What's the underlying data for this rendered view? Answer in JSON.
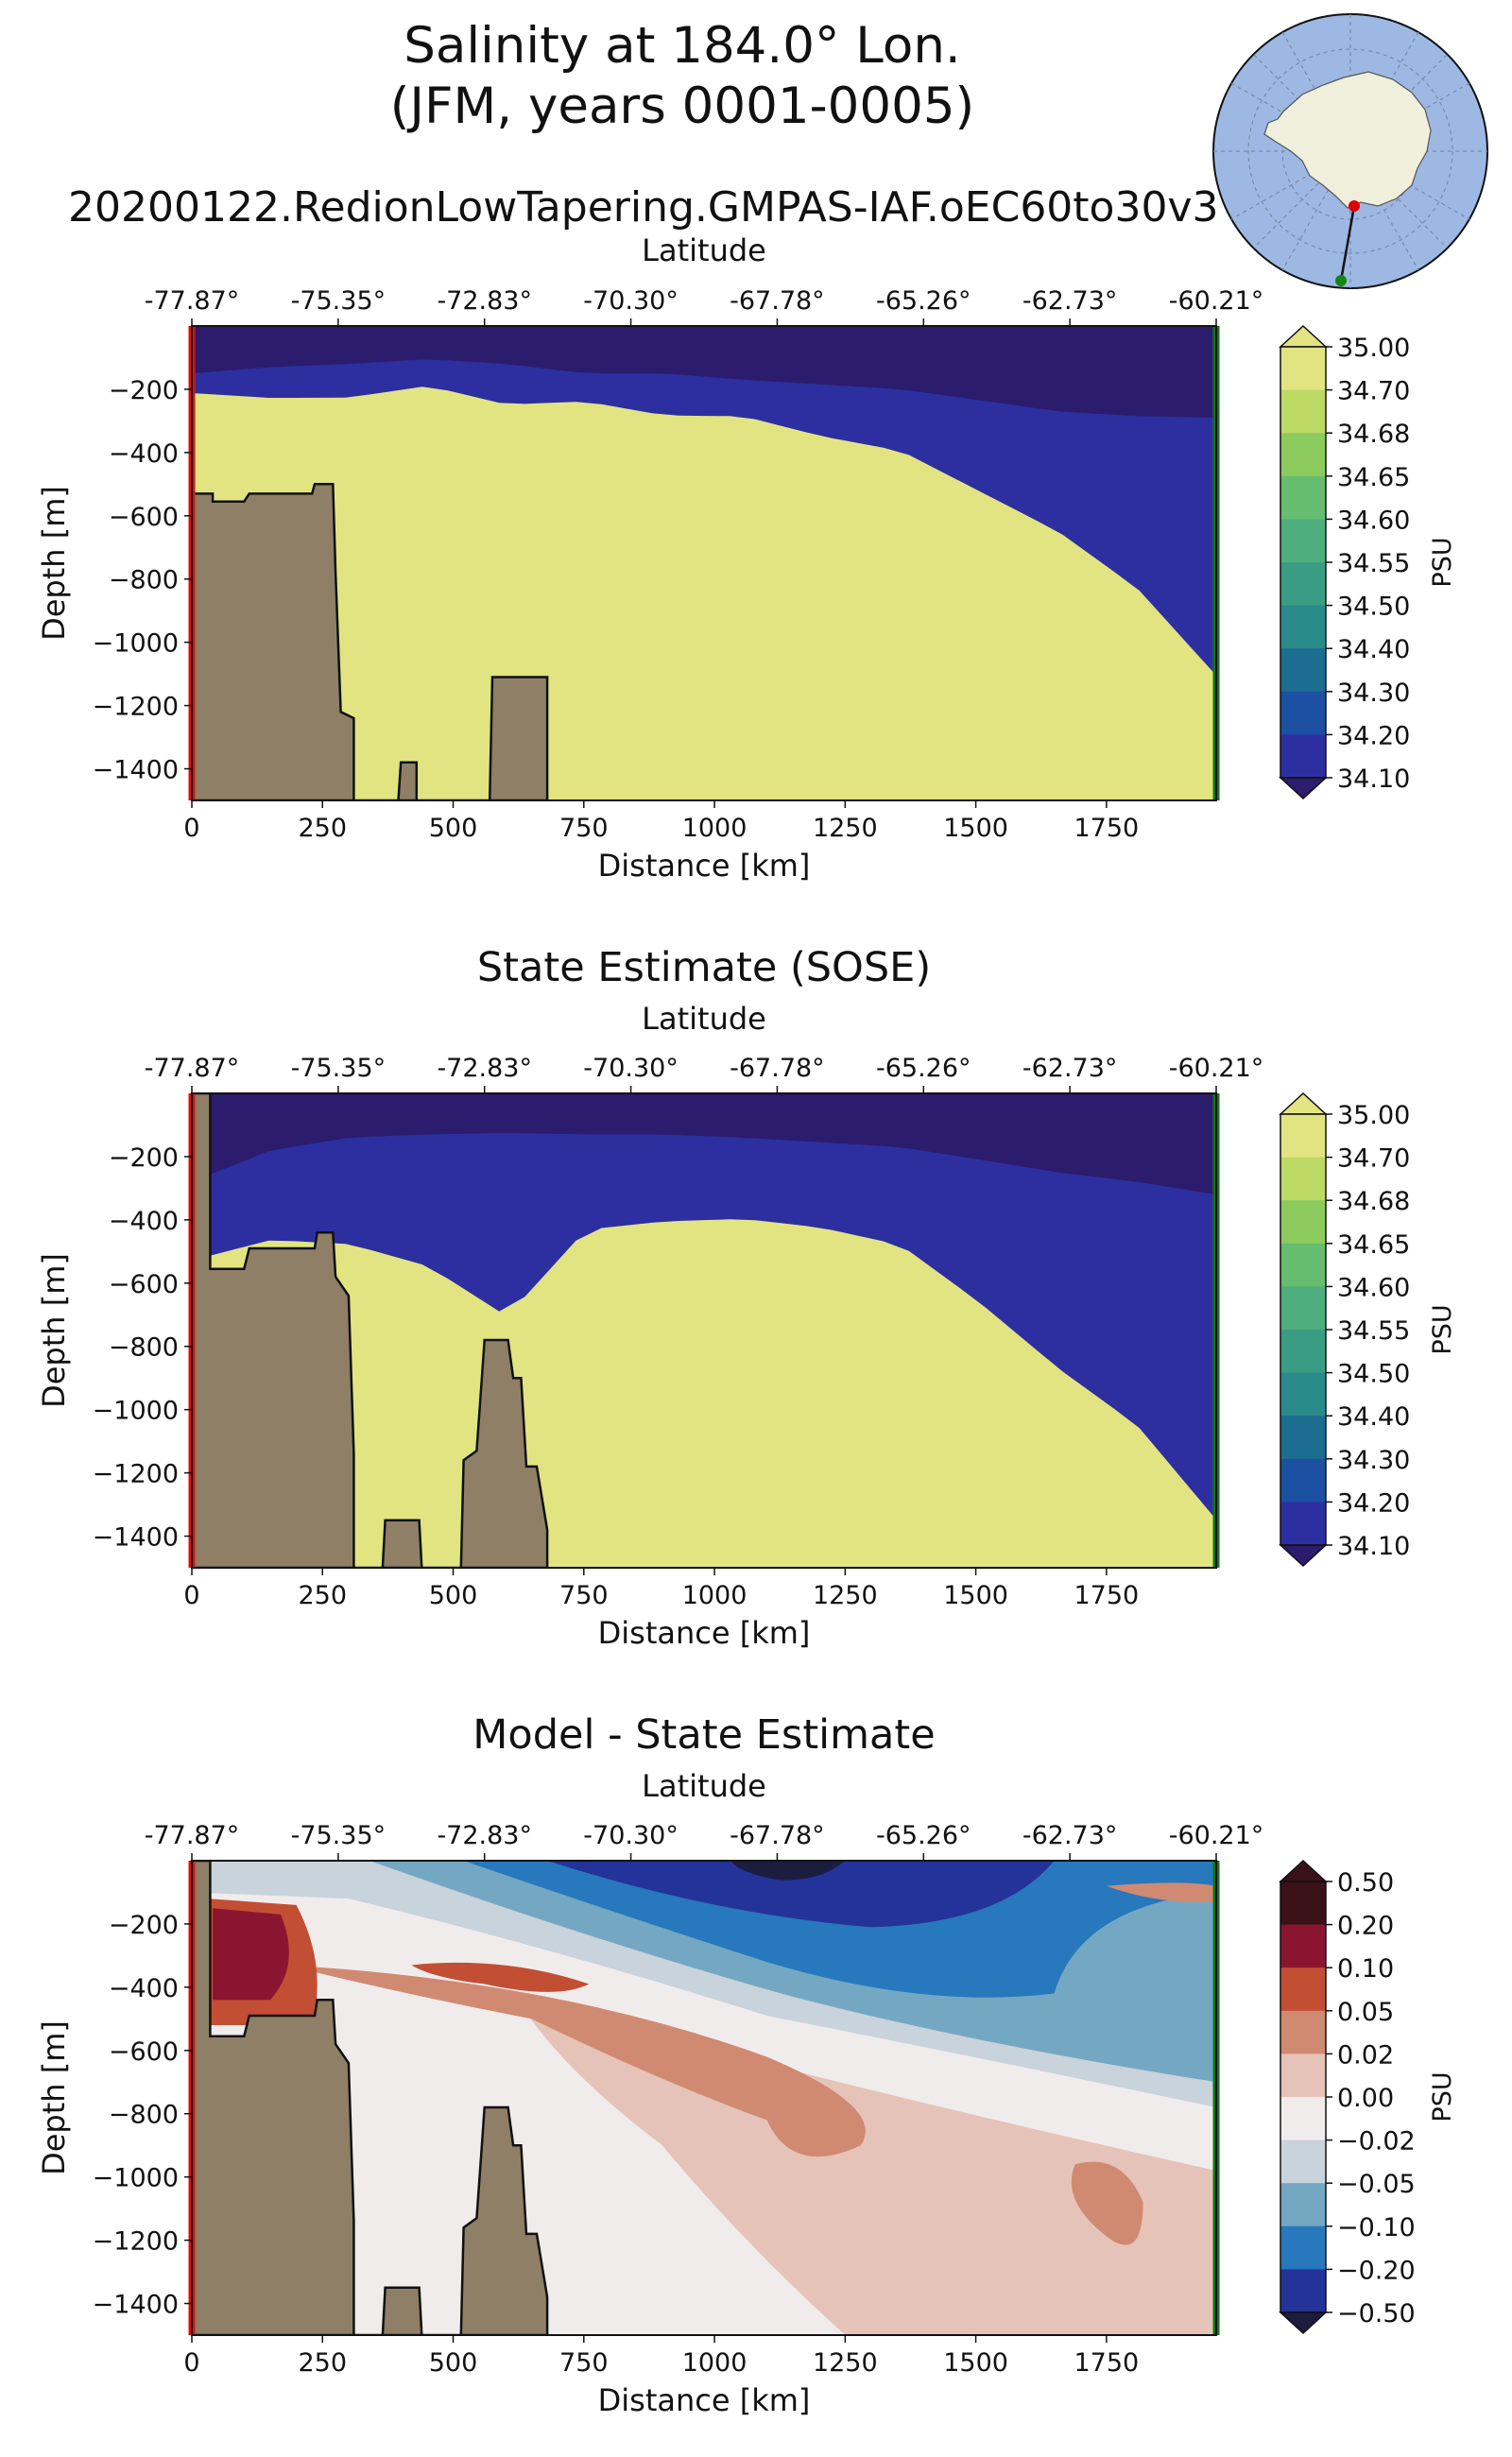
{
  "figure": {
    "title_line1": "Salinity at 184.0° Lon.",
    "title_line2": "(JFM, years 0001-0005)",
    "run_name": "20200122.RedionLowTapering.GMPAS-IAF.oEC60to30v3"
  },
  "inset_map": {
    "ocean_color": "#9db8e3",
    "land_color": "#efefdc",
    "transect_start_color": "#dd0000",
    "transect_end_color": "#118811"
  },
  "colors": {
    "land": "#8e7f66",
    "start_line": "#dd1111",
    "end_line": "#117711",
    "salinity_levels": [
      "#2b1c6e",
      "#2d2fa0",
      "#1b50a3",
      "#1c6d90",
      "#2a8b8a",
      "#3a9d83",
      "#4fae7d",
      "#67bd6f",
      "#8ccb5e",
      "#bcd964",
      "#e2e482"
    ],
    "diff_levels": [
      "#1c1d3e",
      "#23339a",
      "#2778bd",
      "#74a8c2",
      "#c8d3db",
      "#f1ecec",
      "#e6c3b8",
      "#d08a72",
      "#c24f34",
      "#8b1530",
      "#3a1119"
    ]
  },
  "chart_data": [
    {
      "type": "heatmap",
      "title": "",
      "top_axis_label": "Latitude",
      "top_ticks": [
        "-77.87°",
        "-75.35°",
        "-72.83°",
        "-70.30°",
        "-67.78°",
        "-65.26°",
        "-62.73°",
        "-60.21°"
      ],
      "xlabel": "Distance [km]",
      "ylabel": "Depth [m]",
      "xlim": [
        0,
        1960
      ],
      "ylim": [
        -1500,
        0
      ],
      "x_ticks": [
        "0",
        "250",
        "500",
        "750",
        "1000",
        "1250",
        "1500",
        "1750"
      ],
      "y_ticks": [
        "-200",
        "-400",
        "-600",
        "-800",
        "-1000",
        "-1200",
        "-1400"
      ],
      "colorbar_label": "PSU",
      "colorbar_ticks": [
        "35.00",
        "34.70",
        "34.68",
        "34.65",
        "34.60",
        "34.55",
        "34.50",
        "34.40",
        "34.30",
        "34.20",
        "34.10"
      ],
      "surface_layer_depth_m": [
        150,
        130,
        120,
        105,
        120,
        150,
        150,
        170,
        185,
        200,
        235,
        270,
        285,
        290
      ],
      "halocline_depth_m": [
        220,
        240,
        240,
        200,
        265,
        250,
        300,
        300,
        370,
        420,
        560,
        700,
        900,
        1210
      ],
      "bathymetry": [
        [
          0,
          -1500
        ],
        [
          0,
          -530
        ],
        [
          40,
          -530
        ],
        [
          40,
          -555
        ],
        [
          100,
          -555
        ],
        [
          110,
          -530
        ],
        [
          230,
          -530
        ],
        [
          235,
          -500
        ],
        [
          270,
          -500
        ],
        [
          275,
          -780
        ],
        [
          285,
          -1220
        ],
        [
          310,
          -1240
        ],
        [
          310,
          -1500
        ],
        [
          395,
          -1500
        ],
        [
          400,
          -1380
        ],
        [
          430,
          -1380
        ],
        [
          430,
          -1500
        ],
        [
          570,
          -1500
        ],
        [
          575,
          -1110
        ],
        [
          680,
          -1110
        ],
        [
          680,
          -1500
        ]
      ]
    },
    {
      "type": "heatmap",
      "title": "State Estimate (SOSE)",
      "top_axis_label": "Latitude",
      "top_ticks": [
        "-77.87°",
        "-75.35°",
        "-72.83°",
        "-70.30°",
        "-67.78°",
        "-65.26°",
        "-62.73°",
        "-60.21°"
      ],
      "xlabel": "Distance [km]",
      "ylabel": "Depth [m]",
      "xlim": [
        0,
        1960
      ],
      "ylim": [
        -1500,
        0
      ],
      "x_ticks": [
        "0",
        "250",
        "500",
        "750",
        "1000",
        "1250",
        "1500",
        "1750"
      ],
      "y_ticks": [
        "-200",
        "-400",
        "-600",
        "-800",
        "-1000",
        "-1200",
        "-1400"
      ],
      "colorbar_label": "PSU",
      "colorbar_ticks": [
        "35.00",
        "34.70",
        "34.68",
        "34.65",
        "34.60",
        "34.55",
        "34.50",
        "34.40",
        "34.30",
        "34.20",
        "34.10"
      ],
      "surface_layer_depth_m": [
        280,
        180,
        140,
        130,
        125,
        130,
        130,
        140,
        155,
        170,
        210,
        250,
        280,
        320
      ],
      "halocline_depth_m": [
        560,
        500,
        520,
        600,
        780,
        470,
        440,
        430,
        460,
        520,
        720,
        950,
        1150,
        1480
      ],
      "bathymetry": [
        [
          0,
          -1500
        ],
        [
          0,
          0
        ],
        [
          35,
          0
        ],
        [
          35,
          -555
        ],
        [
          100,
          -555
        ],
        [
          110,
          -490
        ],
        [
          235,
          -490
        ],
        [
          240,
          -440
        ],
        [
          270,
          -440
        ],
        [
          275,
          -580
        ],
        [
          300,
          -640
        ],
        [
          310,
          -1140
        ],
        [
          310,
          -1500
        ],
        [
          365,
          -1500
        ],
        [
          370,
          -1350
        ],
        [
          435,
          -1350
        ],
        [
          440,
          -1500
        ],
        [
          515,
          -1500
        ],
        [
          520,
          -1160
        ],
        [
          545,
          -1130
        ],
        [
          555,
          -900
        ],
        [
          560,
          -780
        ],
        [
          605,
          -780
        ],
        [
          615,
          -900
        ],
        [
          630,
          -900
        ],
        [
          640,
          -1180
        ],
        [
          660,
          -1180
        ],
        [
          680,
          -1380
        ],
        [
          680,
          -1500
        ]
      ]
    },
    {
      "type": "heatmap",
      "title": "Model - State Estimate",
      "top_axis_label": "Latitude",
      "top_ticks": [
        "-77.87°",
        "-75.35°",
        "-72.83°",
        "-70.30°",
        "-67.78°",
        "-65.26°",
        "-62.73°",
        "-60.21°"
      ],
      "xlabel": "Distance [km]",
      "ylabel": "Depth [m]",
      "xlim": [
        0,
        1960
      ],
      "ylim": [
        -1500,
        0
      ],
      "x_ticks": [
        "0",
        "250",
        "500",
        "750",
        "1000",
        "1250",
        "1500",
        "1750"
      ],
      "y_ticks": [
        "-200",
        "-400",
        "-600",
        "-800",
        "-1000",
        "-1200",
        "-1400"
      ],
      "colorbar_label": "PSU",
      "colorbar_ticks": [
        "0.50",
        "0.20",
        "0.10",
        "0.05",
        "0.02",
        "0.00",
        "−0.02",
        "−0.05",
        "−0.10",
        "−0.20",
        "−0.50"
      ],
      "bathymetry": [
        [
          0,
          -1500
        ],
        [
          0,
          0
        ],
        [
          35,
          0
        ],
        [
          35,
          -555
        ],
        [
          100,
          -555
        ],
        [
          110,
          -490
        ],
        [
          235,
          -490
        ],
        [
          240,
          -440
        ],
        [
          270,
          -440
        ],
        [
          275,
          -580
        ],
        [
          300,
          -640
        ],
        [
          310,
          -1140
        ],
        [
          310,
          -1500
        ],
        [
          365,
          -1500
        ],
        [
          370,
          -1350
        ],
        [
          435,
          -1350
        ],
        [
          440,
          -1500
        ],
        [
          515,
          -1500
        ],
        [
          520,
          -1160
        ],
        [
          545,
          -1130
        ],
        [
          555,
          -900
        ],
        [
          560,
          -780
        ],
        [
          605,
          -780
        ],
        [
          615,
          -900
        ],
        [
          630,
          -900
        ],
        [
          640,
          -1180
        ],
        [
          660,
          -1180
        ],
        [
          680,
          -1380
        ],
        [
          680,
          -1500
        ]
      ]
    }
  ]
}
